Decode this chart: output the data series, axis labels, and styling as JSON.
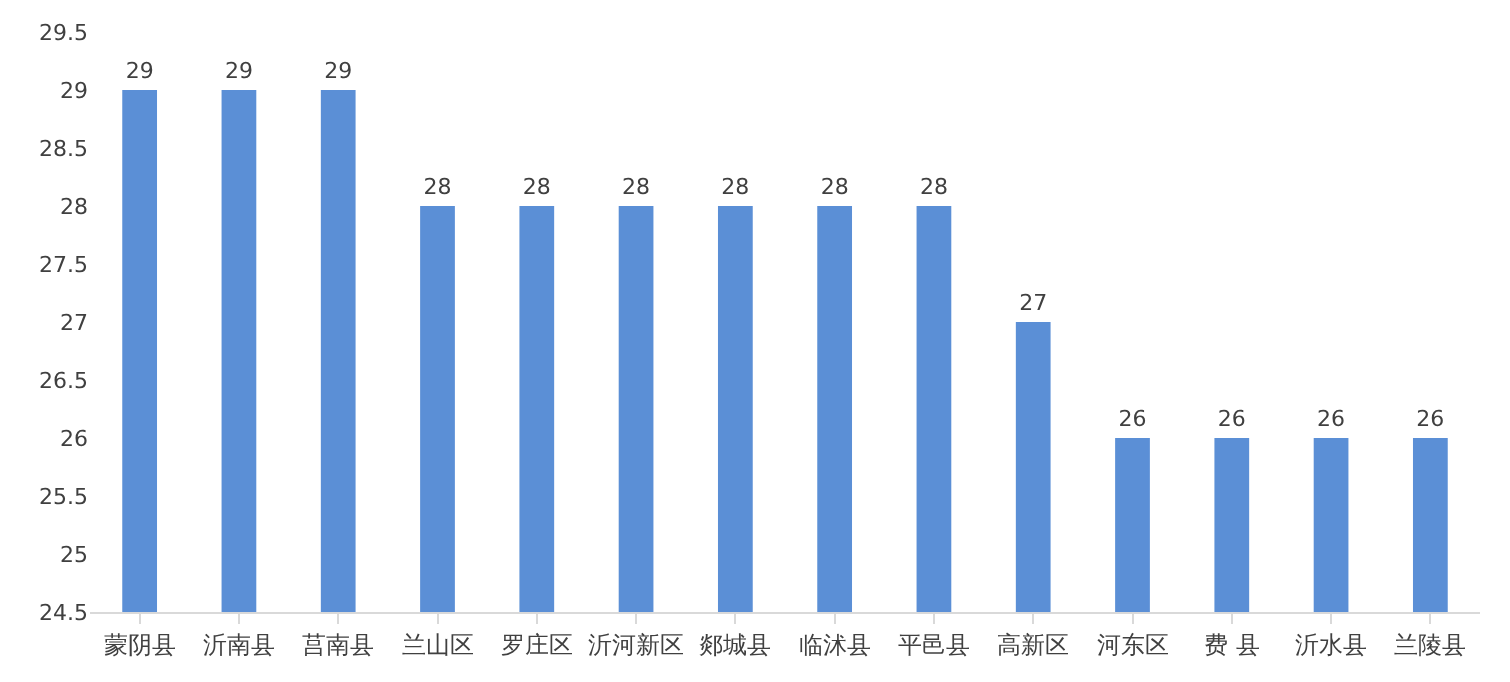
{
  "chart_data": {
    "type": "bar",
    "categories": [
      "蒙阴县",
      "沂南县",
      "莒南县",
      "兰山区",
      "罗庄区",
      "沂河新区",
      "郯城县",
      "临沭县",
      "平邑县",
      "高新区",
      "河东区",
      "费 县",
      "沂水县",
      "兰陵县"
    ],
    "values": [
      29,
      29,
      29,
      28,
      28,
      28,
      28,
      28,
      28,
      27,
      26,
      26,
      26,
      26
    ],
    "color": "#5b8fd6",
    "ylim": [
      24.5,
      29.5
    ],
    "yticks": [
      24.5,
      25,
      25.5,
      26,
      26.5,
      27,
      27.5,
      28,
      28.5,
      29,
      29.5
    ],
    "data_labels": true,
    "grid": false,
    "legend": false
  }
}
